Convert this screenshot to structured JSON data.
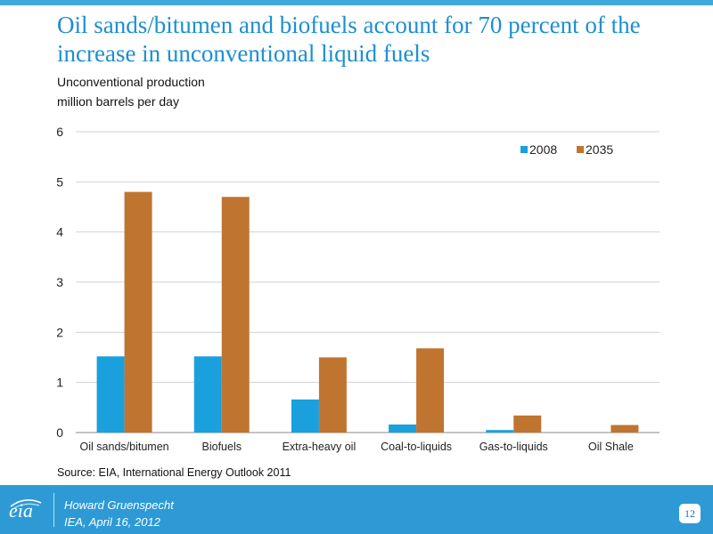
{
  "header": {
    "title": "Oil sands/bitumen and biofuels account for 70 percent of the increase in unconventional liquid fuels",
    "subtitle_line1": "Unconventional production",
    "subtitle_line2": "million barrels per day"
  },
  "source": "Source:  EIA, International Energy Outlook 2011",
  "footer": {
    "logo_text": "eia",
    "author": "Howard Gruenspecht",
    "event": "IEA, April 16, 2012",
    "page_number": "12"
  },
  "colors": {
    "accent": "#2d9ad6",
    "series_2008": "#1aa0dc",
    "series_2035": "#bf7530"
  },
  "chart_data": {
    "type": "bar",
    "categories": [
      "Oil sands/bitumen",
      "Biofuels",
      "Extra-heavy oil",
      "Coal-to-liquids",
      "Gas-to-liquids",
      "Oil Shale"
    ],
    "series": [
      {
        "name": "2008",
        "values": [
          1.52,
          1.52,
          0.66,
          0.16,
          0.05,
          0.0
        ]
      },
      {
        "name": "2035",
        "values": [
          4.8,
          4.7,
          1.5,
          1.68,
          0.34,
          0.15
        ]
      }
    ],
    "ylim": [
      0,
      6
    ],
    "yticks": [
      "0",
      "1",
      "2",
      "3",
      "4",
      "5",
      "6"
    ],
    "grid": true,
    "legend": "top-right"
  }
}
